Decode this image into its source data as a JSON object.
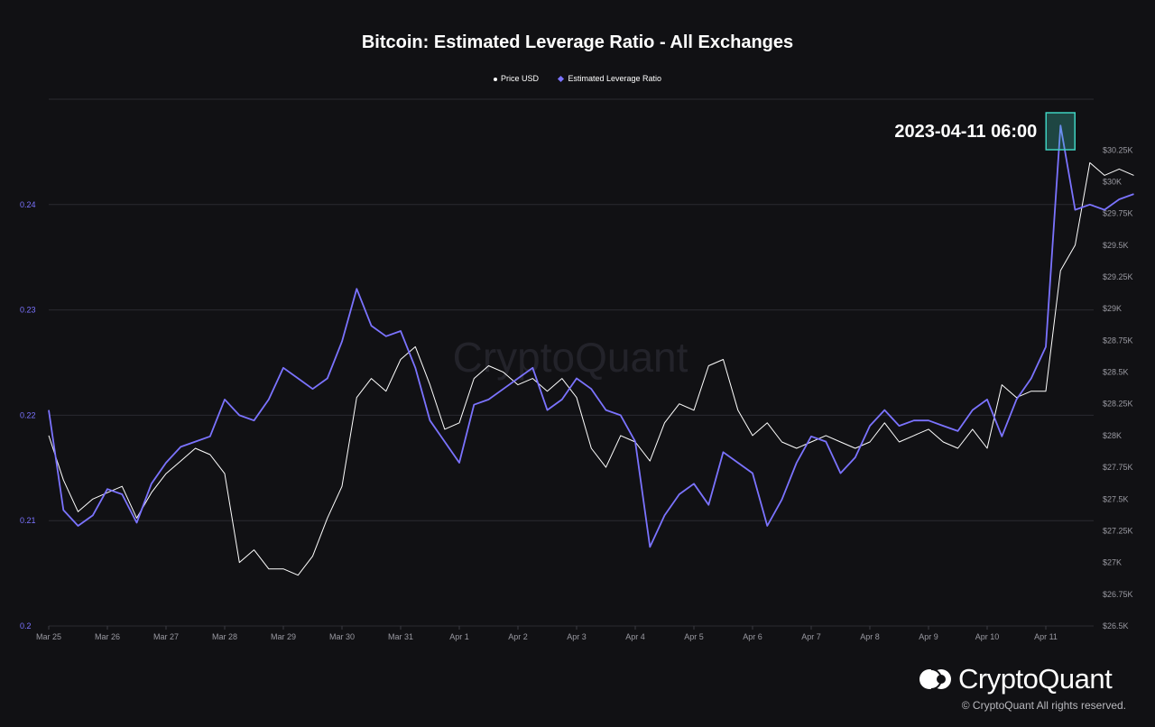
{
  "chart_data": {
    "type": "line",
    "title": "Bitcoin: Estimated Leverage Ratio - All Exchanges",
    "x_tick_labels": [
      "Mar 25",
      "Mar 26",
      "Mar 27",
      "Mar 28",
      "Mar 29",
      "Mar 30",
      "Mar 31",
      "Apr 1",
      "Apr 2",
      "Apr 3",
      "Apr 4",
      "Apr 5",
      "Apr 6",
      "Apr 7",
      "Apr 8",
      "Apr 9",
      "Apr 10",
      "Apr 11"
    ],
    "y_left": {
      "ticks": [
        "0.2",
        "0.21",
        "0.22",
        "0.23",
        "0.24"
      ],
      "range": [
        0.2,
        0.25
      ],
      "color": "#7b73ff"
    },
    "y_right": {
      "ticks": [
        "$26.5K",
        "$26.75K",
        "$27K",
        "$27.25K",
        "$27.5K",
        "$27.75K",
        "$28K",
        "$28.25K",
        "$28.5K",
        "$28.75K",
        "$29K",
        "$29.25K",
        "$29.5K",
        "$29.75K",
        "$30K",
        "$30.25K"
      ],
      "range": [
        26500,
        30650
      ]
    },
    "grid": "horizontal",
    "legend_position": "top-center",
    "annotation": {
      "label": "2023-04-11 06:00",
      "x": "2023-04-11 06:00"
    },
    "series": [
      {
        "name": "Price USD",
        "color": "#ffffff",
        "axis": "right",
        "points": [
          [
            "2023-03-25 00:00",
            28000
          ],
          [
            "2023-03-25 06:00",
            27650
          ],
          [
            "2023-03-25 12:00",
            27400
          ],
          [
            "2023-03-25 18:00",
            27500
          ],
          [
            "2023-03-26 00:00",
            27550
          ],
          [
            "2023-03-26 06:00",
            27600
          ],
          [
            "2023-03-26 12:00",
            27350
          ],
          [
            "2023-03-26 18:00",
            27550
          ],
          [
            "2023-03-27 00:00",
            27700
          ],
          [
            "2023-03-27 06:00",
            27800
          ],
          [
            "2023-03-27 12:00",
            27900
          ],
          [
            "2023-03-27 18:00",
            27850
          ],
          [
            "2023-03-28 00:00",
            27700
          ],
          [
            "2023-03-28 06:00",
            27000
          ],
          [
            "2023-03-28 12:00",
            27100
          ],
          [
            "2023-03-28 18:00",
            26950
          ],
          [
            "2023-03-29 00:00",
            26950
          ],
          [
            "2023-03-29 06:00",
            26900
          ],
          [
            "2023-03-29 12:00",
            27050
          ],
          [
            "2023-03-29 18:00",
            27350
          ],
          [
            "2023-03-30 00:00",
            27600
          ],
          [
            "2023-03-30 06:00",
            28300
          ],
          [
            "2023-03-30 12:00",
            28450
          ],
          [
            "2023-03-30 18:00",
            28350
          ],
          [
            "2023-03-31 00:00",
            28600
          ],
          [
            "2023-03-31 06:00",
            28700
          ],
          [
            "2023-03-31 12:00",
            28400
          ],
          [
            "2023-03-31 18:00",
            28050
          ],
          [
            "2023-04-01 00:00",
            28100
          ],
          [
            "2023-04-01 06:00",
            28450
          ],
          [
            "2023-04-01 12:00",
            28550
          ],
          [
            "2023-04-01 18:00",
            28500
          ],
          [
            "2023-04-02 00:00",
            28400
          ],
          [
            "2023-04-02 06:00",
            28450
          ],
          [
            "2023-04-02 12:00",
            28350
          ],
          [
            "2023-04-02 18:00",
            28450
          ],
          [
            "2023-04-03 00:00",
            28300
          ],
          [
            "2023-04-03 06:00",
            27900
          ],
          [
            "2023-04-03 12:00",
            27750
          ],
          [
            "2023-04-03 18:00",
            28000
          ],
          [
            "2023-04-04 00:00",
            27950
          ],
          [
            "2023-04-04 06:00",
            27800
          ],
          [
            "2023-04-04 12:00",
            28100
          ],
          [
            "2023-04-04 18:00",
            28250
          ],
          [
            "2023-04-05 00:00",
            28200
          ],
          [
            "2023-04-05 06:00",
            28550
          ],
          [
            "2023-04-05 12:00",
            28600
          ],
          [
            "2023-04-05 18:00",
            28200
          ],
          [
            "2023-04-06 00:00",
            28000
          ],
          [
            "2023-04-06 06:00",
            28100
          ],
          [
            "2023-04-06 12:00",
            27950
          ],
          [
            "2023-04-06 18:00",
            27900
          ],
          [
            "2023-04-07 00:00",
            27950
          ],
          [
            "2023-04-07 06:00",
            28000
          ],
          [
            "2023-04-07 12:00",
            27950
          ],
          [
            "2023-04-07 18:00",
            27900
          ],
          [
            "2023-04-08 00:00",
            27950
          ],
          [
            "2023-04-08 06:00",
            28100
          ],
          [
            "2023-04-08 12:00",
            27950
          ],
          [
            "2023-04-08 18:00",
            28000
          ],
          [
            "2023-04-09 00:00",
            28050
          ],
          [
            "2023-04-09 06:00",
            27950
          ],
          [
            "2023-04-09 12:00",
            27900
          ],
          [
            "2023-04-09 18:00",
            28050
          ],
          [
            "2023-04-10 00:00",
            27900
          ],
          [
            "2023-04-10 06:00",
            28400
          ],
          [
            "2023-04-10 12:00",
            28300
          ],
          [
            "2023-04-10 18:00",
            28350
          ],
          [
            "2023-04-11 00:00",
            28350
          ],
          [
            "2023-04-11 06:00",
            29300
          ],
          [
            "2023-04-11 12:00",
            29500
          ],
          [
            "2023-04-11 18:00",
            30150
          ],
          [
            "2023-04-12 00:00",
            30050
          ],
          [
            "2023-04-12 06:00",
            30100
          ],
          [
            "2023-04-12 12:00",
            30050
          ]
        ]
      },
      {
        "name": "Estimated Leverage Ratio",
        "color": "#7b73ff",
        "axis": "left",
        "points": [
          [
            "2023-03-25 00:00",
            0.2205
          ],
          [
            "2023-03-25 06:00",
            0.211
          ],
          [
            "2023-03-25 12:00",
            0.2095
          ],
          [
            "2023-03-25 18:00",
            0.2105
          ],
          [
            "2023-03-26 00:00",
            0.213
          ],
          [
            "2023-03-26 06:00",
            0.2125
          ],
          [
            "2023-03-26 12:00",
            0.2098
          ],
          [
            "2023-03-26 18:00",
            0.2135
          ],
          [
            "2023-03-27 00:00",
            0.2155
          ],
          [
            "2023-03-27 06:00",
            0.217
          ],
          [
            "2023-03-27 12:00",
            0.2175
          ],
          [
            "2023-03-27 18:00",
            0.218
          ],
          [
            "2023-03-28 00:00",
            0.2215
          ],
          [
            "2023-03-28 06:00",
            0.22
          ],
          [
            "2023-03-28 12:00",
            0.2195
          ],
          [
            "2023-03-28 18:00",
            0.2215
          ],
          [
            "2023-03-29 00:00",
            0.2245
          ],
          [
            "2023-03-29 06:00",
            0.2235
          ],
          [
            "2023-03-29 12:00",
            0.2225
          ],
          [
            "2023-03-29 18:00",
            0.2235
          ],
          [
            "2023-03-30 00:00",
            0.227
          ],
          [
            "2023-03-30 06:00",
            0.232
          ],
          [
            "2023-03-30 12:00",
            0.2285
          ],
          [
            "2023-03-30 18:00",
            0.2275
          ],
          [
            "2023-03-31 00:00",
            0.228
          ],
          [
            "2023-03-31 06:00",
            0.2245
          ],
          [
            "2023-03-31 12:00",
            0.2195
          ],
          [
            "2023-03-31 18:00",
            0.2175
          ],
          [
            "2023-04-01 00:00",
            0.2155
          ],
          [
            "2023-04-01 06:00",
            0.221
          ],
          [
            "2023-04-01 12:00",
            0.2215
          ],
          [
            "2023-04-01 18:00",
            0.2225
          ],
          [
            "2023-04-02 00:00",
            0.2235
          ],
          [
            "2023-04-02 06:00",
            0.2245
          ],
          [
            "2023-04-02 12:00",
            0.2205
          ],
          [
            "2023-04-02 18:00",
            0.2215
          ],
          [
            "2023-04-03 00:00",
            0.2235
          ],
          [
            "2023-04-03 06:00",
            0.2225
          ],
          [
            "2023-04-03 12:00",
            0.2205
          ],
          [
            "2023-04-03 18:00",
            0.22
          ],
          [
            "2023-04-04 00:00",
            0.2175
          ],
          [
            "2023-04-04 06:00",
            0.2075
          ],
          [
            "2023-04-04 12:00",
            0.2105
          ],
          [
            "2023-04-04 18:00",
            0.2125
          ],
          [
            "2023-04-05 00:00",
            0.2135
          ],
          [
            "2023-04-05 06:00",
            0.2115
          ],
          [
            "2023-04-05 12:00",
            0.2165
          ],
          [
            "2023-04-05 18:00",
            0.2155
          ],
          [
            "2023-04-06 00:00",
            0.2145
          ],
          [
            "2023-04-06 06:00",
            0.2095
          ],
          [
            "2023-04-06 12:00",
            0.212
          ],
          [
            "2023-04-06 18:00",
            0.2155
          ],
          [
            "2023-04-07 00:00",
            0.218
          ],
          [
            "2023-04-07 06:00",
            0.2175
          ],
          [
            "2023-04-07 12:00",
            0.2145
          ],
          [
            "2023-04-07 18:00",
            0.216
          ],
          [
            "2023-04-08 00:00",
            0.219
          ],
          [
            "2023-04-08 06:00",
            0.2205
          ],
          [
            "2023-04-08 12:00",
            0.219
          ],
          [
            "2023-04-08 18:00",
            0.2195
          ],
          [
            "2023-04-09 00:00",
            0.2195
          ],
          [
            "2023-04-09 06:00",
            0.219
          ],
          [
            "2023-04-09 12:00",
            0.2185
          ],
          [
            "2023-04-09 18:00",
            0.2205
          ],
          [
            "2023-04-10 00:00",
            0.2215
          ],
          [
            "2023-04-10 06:00",
            0.218
          ],
          [
            "2023-04-10 12:00",
            0.2215
          ],
          [
            "2023-04-10 18:00",
            0.2235
          ],
          [
            "2023-04-11 00:00",
            0.2265
          ],
          [
            "2023-04-11 06:00",
            0.2475
          ],
          [
            "2023-04-11 12:00",
            0.2395
          ],
          [
            "2023-04-11 18:00",
            0.24
          ],
          [
            "2023-04-12 00:00",
            0.2395
          ],
          [
            "2023-04-12 06:00",
            0.2405
          ],
          [
            "2023-04-12 12:00",
            0.241
          ]
        ]
      }
    ]
  },
  "brand": {
    "name": "CryptoQuant",
    "copyright": "© CryptoQuant All rights reserved.",
    "watermark": "CryptoQuant"
  },
  "colors": {
    "background": "#111114",
    "grid": "#2a2a30",
    "accent": "#7b73ff",
    "highlight": "#3fd1c0"
  }
}
